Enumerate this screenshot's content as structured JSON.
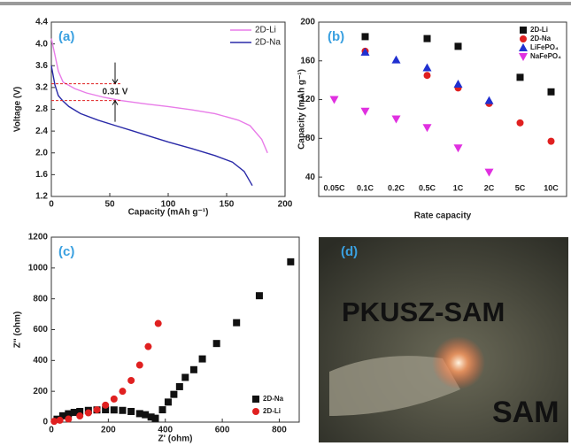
{
  "chart_data": [
    {
      "type": "line",
      "label": "(a)",
      "xlabel": "Capacity (mAh g⁻¹)",
      "ylabel": "Voltage (V)",
      "xlim": [
        0,
        200
      ],
      "ylim": [
        1.2,
        4.4
      ],
      "xticks": [
        0,
        50,
        100,
        150,
        200
      ],
      "yticks": [
        1.2,
        1.6,
        {
          "value": 2,
          "label": "2.0"
        },
        2.4,
        2.8,
        3.2,
        3.6,
        {
          "value": 4,
          "label": "4.0"
        },
        4.4
      ],
      "legend": "upper right",
      "annotation": "0.31 V",
      "reference_lines": [
        3.27,
        2.96
      ],
      "series": [
        {
          "name": "2D-Li",
          "color": "#e87ce8",
          "x": [
            0,
            3,
            6,
            10,
            20,
            30,
            45,
            60,
            80,
            100,
            120,
            140,
            160,
            170,
            180,
            185
          ],
          "values": [
            4.1,
            3.8,
            3.5,
            3.3,
            3.18,
            3.1,
            3.02,
            2.96,
            2.9,
            2.85,
            2.79,
            2.72,
            2.6,
            2.5,
            2.25,
            2.0
          ]
        },
        {
          "name": "2D-Na",
          "color": "#2a2aa8",
          "x": [
            0,
            3,
            6,
            10,
            15,
            25,
            40,
            55,
            70,
            85,
            100,
            120,
            140,
            155,
            165,
            172
          ],
          "values": [
            3.6,
            3.25,
            3.05,
            2.95,
            2.85,
            2.72,
            2.6,
            2.5,
            2.4,
            2.3,
            2.2,
            2.08,
            1.95,
            1.83,
            1.66,
            1.4
          ]
        }
      ]
    },
    {
      "type": "scatter",
      "label": "(b)",
      "xlabel": "Rate capacity",
      "ylabel": "Capacity (mAh g⁻¹)",
      "categories": [
        "0.05C",
        "0.1C",
        "0.2C",
        "0.5C",
        "1C",
        "2C",
        "5C",
        "10C"
      ],
      "ylim": [
        20,
        200
      ],
      "yticks": [
        40,
        80,
        120,
        160,
        200
      ],
      "legend": "upper right",
      "series": [
        {
          "name": "2D-Li",
          "color": "#111111",
          "marker": "square",
          "values": [
            null,
            185,
            null,
            183,
            175,
            null,
            143,
            128
          ]
        },
        {
          "name": "2D-Na",
          "color": "#e02020",
          "marker": "circle",
          "values": [
            null,
            170,
            null,
            145,
            132,
            116,
            96,
            77
          ]
        },
        {
          "name": "LiFePO₄",
          "color": "#2030d0",
          "marker": "triangle",
          "values": [
            null,
            169,
            161,
            153,
            136,
            119,
            null,
            null
          ]
        },
        {
          "name": "NaFePO₄",
          "color": "#e030e0",
          "marker": "triangle-down",
          "values": [
            120,
            108,
            100,
            91,
            70,
            45,
            null,
            null
          ]
        }
      ]
    },
    {
      "type": "scatter",
      "label": "(c)",
      "xlabel": "Z' (ohm)",
      "ylabel": "Z'' (ohm)",
      "xlim": [
        0,
        870
      ],
      "ylim": [
        0,
        1200
      ],
      "xticks": [
        0,
        200,
        400,
        600,
        800
      ],
      "yticks": [
        0,
        200,
        400,
        600,
        800,
        1000,
        1200
      ],
      "legend": "lower right",
      "series": [
        {
          "name": "2D-Na",
          "color": "#111111",
          "marker": "square",
          "x": [
            20,
            40,
            60,
            80,
            100,
            130,
            160,
            190,
            220,
            250,
            280,
            310,
            330,
            350,
            365,
            390,
            410,
            430,
            450,
            470,
            500,
            530,
            580,
            650,
            730,
            840
          ],
          "values": [
            19,
            41,
            54,
            63,
            69,
            76,
            79,
            80,
            79,
            76,
            69,
            55,
            48,
            33,
            25,
            80,
            130,
            180,
            230,
            290,
            340,
            410,
            510,
            645,
            820,
            1040
          ]
        },
        {
          "name": "2D-Li",
          "color": "#e02020",
          "marker": "circle",
          "x": [
            10,
            30,
            60,
            100,
            130,
            160,
            190,
            220,
            250,
            280,
            310,
            340,
            375
          ],
          "values": [
            5,
            12,
            20,
            40,
            60,
            80,
            110,
            150,
            200,
            270,
            370,
            490,
            640
          ]
        }
      ]
    }
  ],
  "photo": {
    "label": "(d)",
    "texts": [
      "PKUSZ-SAM",
      "SAM"
    ]
  }
}
